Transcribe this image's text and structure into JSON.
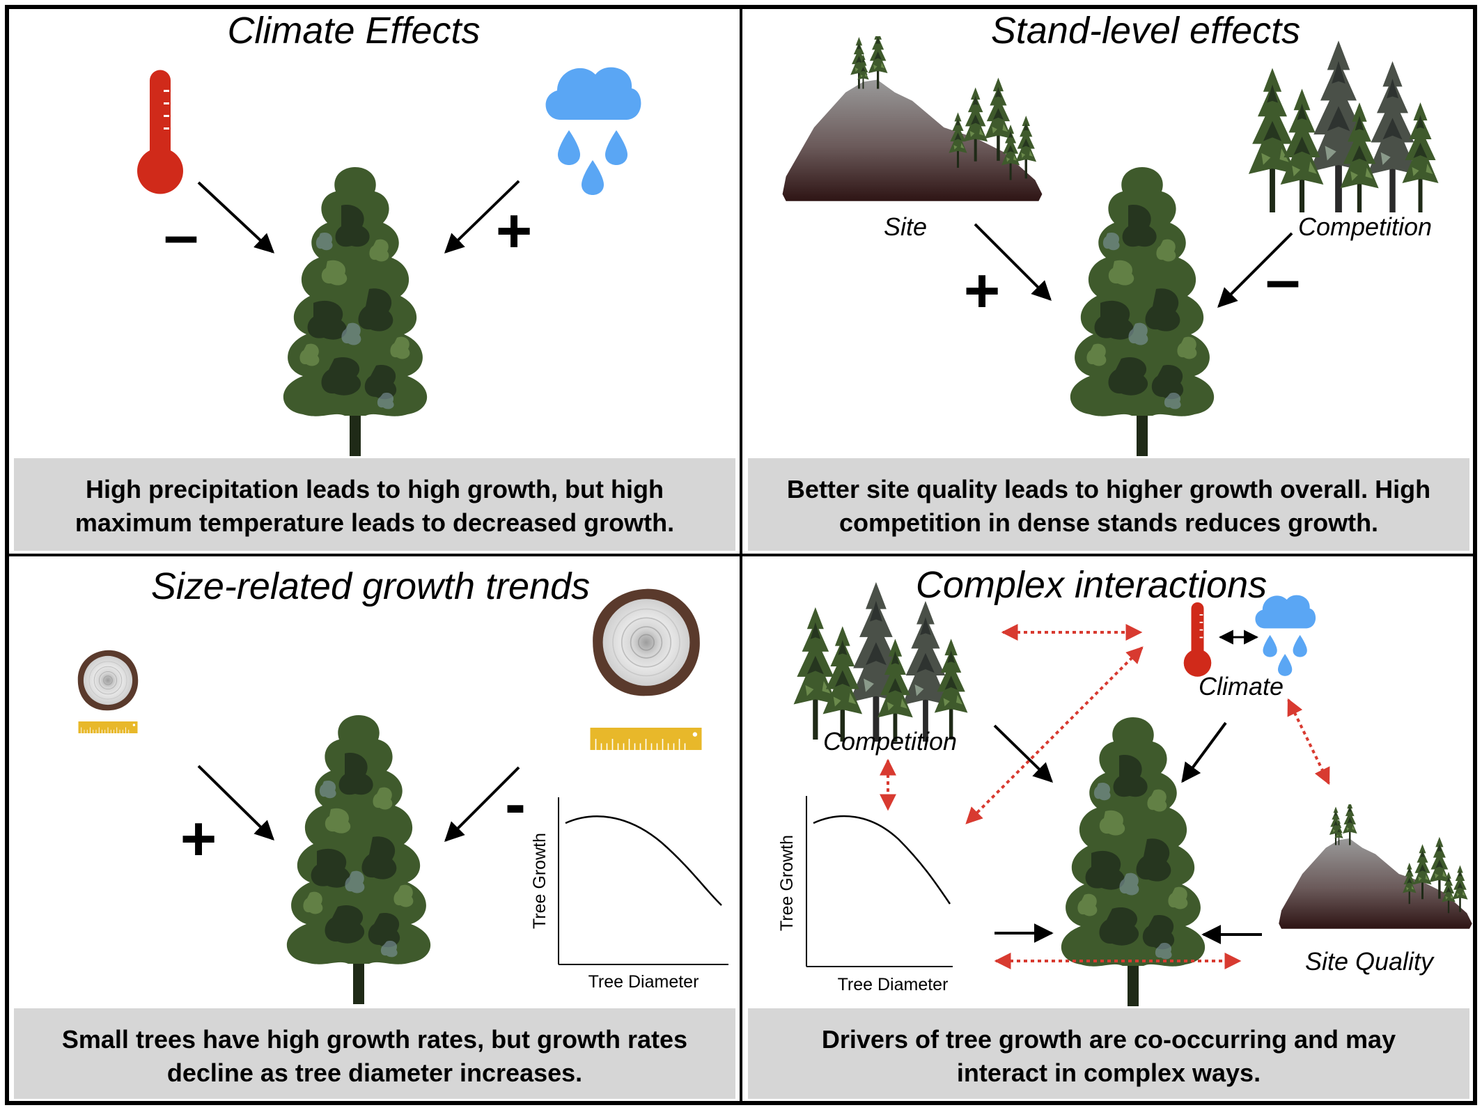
{
  "colors": {
    "thermometer": "#d02a1a",
    "cloud": "#5aa6f4",
    "tree_dark": "#26361f",
    "tree_mid": "#3f5a2c",
    "tree_light": "#6b8a4c",
    "caption_bg": "#d6d6d6",
    "arrow_dotted": "#d83a30",
    "ruler": "#e8b82a",
    "bark": "#5a3a2c"
  },
  "panels": [
    {
      "title": "Climate Effects",
      "caption_lines": [
        "High precipitation leads to high growth, but high",
        "maximum temperature leads to decreased growth."
      ],
      "signs": [
        "–",
        "+"
      ]
    },
    {
      "title": "Stand-level effects",
      "labels": [
        "Site",
        "Competition"
      ],
      "caption_lines": [
        "Better site quality leads to higher growth overall. High",
        "competition in dense stands reduces growth."
      ],
      "signs": [
        "+",
        "–"
      ]
    },
    {
      "title": "Size-related growth trends",
      "caption_lines": [
        "Small trees have high growth rates, but growth rates",
        "decline as tree diameter increases."
      ],
      "signs": [
        "+",
        "-"
      ],
      "chart": {
        "xlabel": "Tree Diameter",
        "ylabel": "Tree Growth"
      }
    },
    {
      "title": "Complex interactions",
      "labels": [
        "Climate",
        "Competition",
        "Site Quality"
      ],
      "caption_lines": [
        "Drivers of tree growth are co-occurring and may",
        "interact in complex ways."
      ],
      "chart": {
        "xlabel": "Tree Diameter",
        "ylabel": "Tree Growth"
      }
    }
  ]
}
